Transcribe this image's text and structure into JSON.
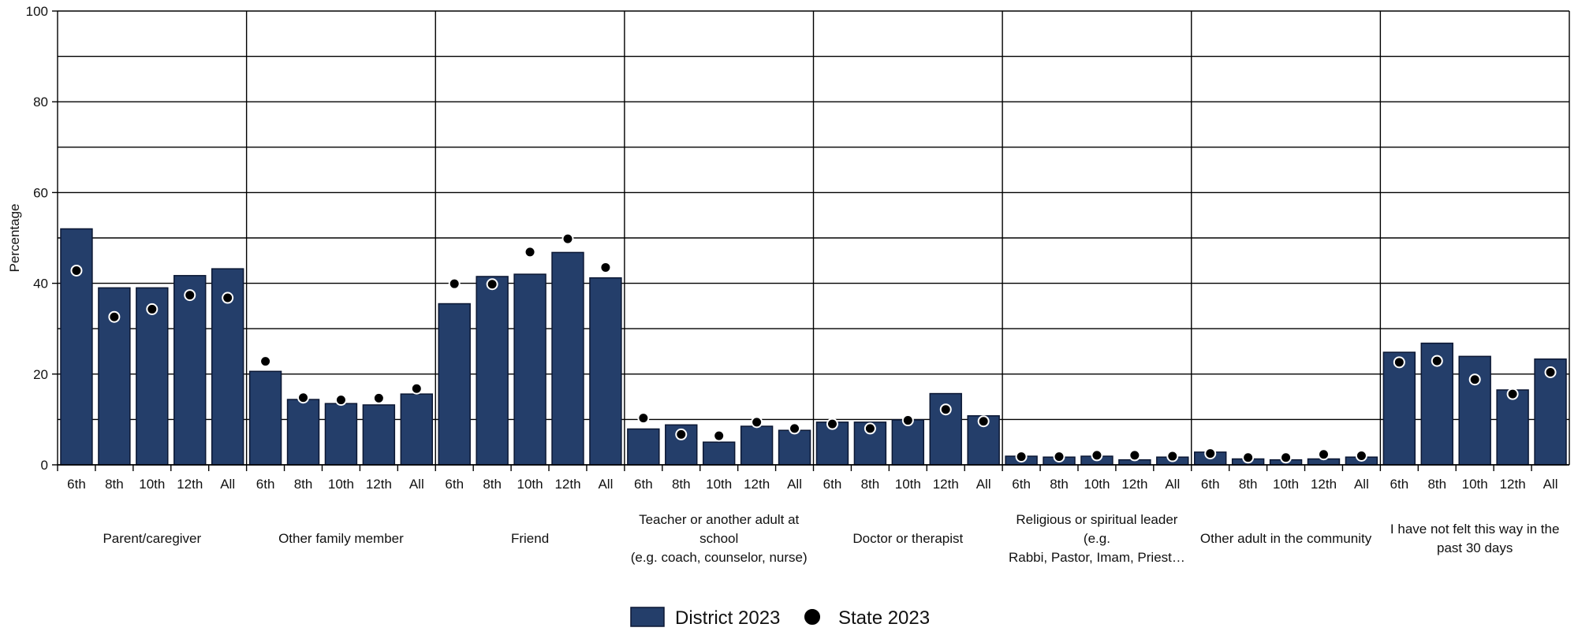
{
  "chart_data": {
    "type": "bar",
    "ylabel": "Percentage",
    "ylim": [
      0,
      100
    ],
    "y_ticks": [
      "0",
      "20",
      "40",
      "60",
      "80",
      "100"
    ],
    "grid": true,
    "legend_placement": "bottom-center",
    "subcategories": [
      "6th",
      "8th",
      "10th",
      "12th",
      "All"
    ],
    "groups": [
      {
        "label_lines": [
          "Parent/caregiver"
        ],
        "district": [
          52.0,
          39.0,
          39.0,
          41.7,
          43.2
        ],
        "state": [
          42.8,
          32.6,
          34.3,
          37.4,
          36.8
        ]
      },
      {
        "label_lines": [
          "Other family member"
        ],
        "district": [
          20.6,
          14.4,
          13.5,
          13.2,
          15.6
        ],
        "state": [
          22.8,
          14.8,
          14.3,
          14.7,
          16.8
        ]
      },
      {
        "label_lines": [
          "Friend"
        ],
        "district": [
          35.5,
          41.5,
          42.0,
          46.8,
          41.2
        ],
        "state": [
          39.9,
          39.8,
          46.9,
          49.8,
          43.5
        ]
      },
      {
        "label_lines": [
          "Teacher or another adult at",
          "school",
          "(e.g. coach, counselor, nurse)"
        ],
        "district": [
          7.9,
          8.8,
          5.0,
          8.5,
          7.6
        ],
        "state": [
          10.3,
          6.7,
          6.4,
          9.4,
          8.0
        ]
      },
      {
        "label_lines": [
          "Doctor or therapist"
        ],
        "district": [
          9.4,
          9.4,
          9.9,
          15.7,
          10.8
        ],
        "state": [
          9.0,
          8.0,
          9.8,
          12.2,
          9.6
        ]
      },
      {
        "label_lines": [
          "Religious or spiritual leader",
          "(e.g.",
          "Rabbi, Pastor, Imam, Priest…"
        ],
        "district": [
          1.9,
          1.7,
          1.9,
          1.1,
          1.7
        ],
        "state": [
          1.8,
          1.8,
          2.1,
          2.1,
          1.9
        ]
      },
      {
        "label_lines": [
          "Other adult in the community"
        ],
        "district": [
          2.8,
          1.3,
          1.1,
          1.3,
          1.7
        ],
        "state": [
          2.5,
          1.6,
          1.6,
          2.3,
          2.0
        ]
      },
      {
        "label_lines": [
          "I have not felt this way in the",
          "past 30 days"
        ],
        "district": [
          24.8,
          26.8,
          23.9,
          16.5,
          23.3
        ],
        "state": [
          22.6,
          22.9,
          18.8,
          15.6,
          20.4
        ]
      }
    ],
    "series": [
      {
        "name": "District 2023",
        "key": "district",
        "color": "#243e6a"
      },
      {
        "name": "State 2023",
        "key": "state",
        "color": "#000000"
      }
    ]
  }
}
